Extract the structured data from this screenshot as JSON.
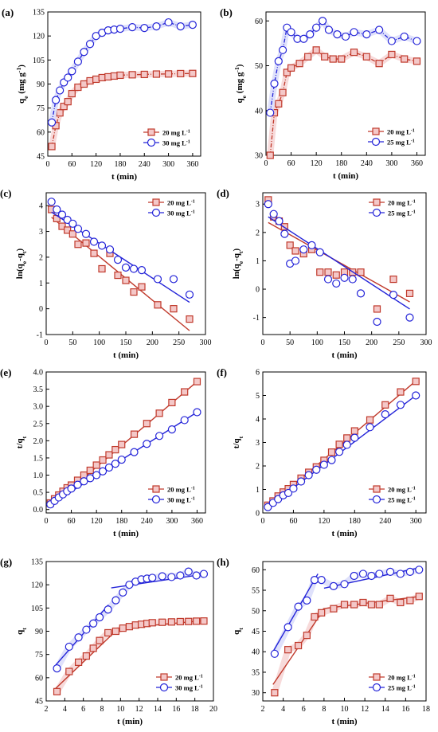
{
  "colors": {
    "red": "#c0392b",
    "blue": "#2323d8",
    "fill_red": "#f4c8c8",
    "fill_blue": "#ffffff",
    "band_red": "#f6d3d3",
    "band_blue": "#d9dcfa"
  },
  "chart_data": [
    {
      "id": "a",
      "panel_label": "(a)",
      "type": "line",
      "xlabel": "t (min)",
      "ylabel": "q_e (mg g^-1)",
      "xlim": [
        0,
        380
      ],
      "ylim": [
        45,
        135
      ],
      "xticks": [
        0,
        60,
        120,
        180,
        240,
        300,
        360
      ],
      "yticks": [
        45,
        60,
        75,
        90,
        105,
        120,
        135
      ],
      "legend_placement": "bottom-right",
      "band": true,
      "series": [
        {
          "name": "20 mg L^-1",
          "marker": "square",
          "color": "red",
          "x": [
            10,
            20,
            30,
            40,
            50,
            60,
            75,
            90,
            105,
            120,
            135,
            150,
            165,
            180,
            210,
            240,
            270,
            300,
            330,
            360
          ],
          "y": [
            51,
            64,
            72,
            76,
            79,
            84,
            88,
            90,
            92,
            93,
            94,
            94.5,
            95,
            95.5,
            95.8,
            96,
            96.2,
            96.3,
            96.5,
            96.6
          ]
        },
        {
          "name": "30 mg L^-1",
          "marker": "circle",
          "color": "blue",
          "x": [
            10,
            20,
            30,
            40,
            50,
            60,
            75,
            90,
            105,
            120,
            135,
            150,
            165,
            180,
            210,
            240,
            270,
            300,
            330,
            360
          ],
          "y": [
            66,
            80,
            86,
            91,
            94,
            98,
            104,
            110,
            115,
            120,
            122,
            123.5,
            124,
            124.5,
            125.5,
            125,
            126,
            128.5,
            126,
            127
          ]
        }
      ]
    },
    {
      "id": "b",
      "panel_label": "(b)",
      "type": "line",
      "xlabel": "t (min)",
      "ylabel": "q_e (mg g^-1)",
      "xlim": [
        0,
        380
      ],
      "ylim": [
        30,
        62
      ],
      "xticks": [
        0,
        60,
        120,
        180,
        240,
        300,
        360
      ],
      "yticks": [
        30,
        40,
        50,
        60
      ],
      "legend_placement": "bottom-right",
      "band": true,
      "series": [
        {
          "name": "20 mg L^-1",
          "marker": "square",
          "color": "red",
          "x": [
            10,
            20,
            30,
            40,
            50,
            60,
            80,
            100,
            120,
            140,
            160,
            180,
            210,
            240,
            270,
            300,
            330,
            360
          ],
          "y": [
            30,
            39.5,
            41.5,
            44,
            48.5,
            49.5,
            50.5,
            52,
            53.5,
            52,
            51.5,
            51.5,
            53,
            52,
            50.5,
            52.5,
            51.5,
            51
          ]
        },
        {
          "name": "25 mg L^-1",
          "marker": "circle",
          "color": "blue",
          "x": [
            10,
            20,
            30,
            40,
            50,
            60,
            75,
            90,
            105,
            120,
            135,
            150,
            170,
            190,
            210,
            240,
            270,
            300,
            330,
            360
          ],
          "y": [
            39.5,
            46,
            51,
            53.5,
            58.5,
            57.5,
            56,
            56,
            57,
            58.5,
            60,
            58,
            57,
            56.5,
            57.5,
            57,
            58,
            55.5,
            56.5,
            55.5
          ]
        }
      ]
    },
    {
      "id": "c",
      "panel_label": "(c)",
      "type": "scatter",
      "xlabel": "t (min)",
      "ylabel": "ln(q_e-q_t)",
      "xlim": [
        0,
        300
      ],
      "ylim": [
        -1,
        4.5
      ],
      "xticks": [
        0,
        50,
        100,
        150,
        200,
        250,
        300
      ],
      "yticks": [
        -1,
        0,
        1,
        2,
        3,
        4
      ],
      "legend_placement": "top-right",
      "band": false,
      "series": [
        {
          "name": "20 mg L^-1",
          "marker": "square",
          "color": "red",
          "x": [
            10,
            20,
            30,
            40,
            50,
            60,
            75,
            90,
            105,
            120,
            135,
            150,
            165,
            180,
            210,
            240,
            270
          ],
          "y": [
            3.85,
            3.5,
            3.2,
            3.05,
            2.9,
            2.5,
            2.55,
            2.15,
            1.55,
            2.15,
            1.3,
            1.1,
            0.65,
            0.85,
            0.15,
            0.0,
            -0.4
          ],
          "fit": [
            [
              10,
              3.55
            ],
            [
              270,
              -0.85
            ]
          ]
        },
        {
          "name": "30 mg L^-1",
          "marker": "circle",
          "color": "blue",
          "x": [
            10,
            20,
            30,
            40,
            50,
            60,
            75,
            90,
            105,
            120,
            135,
            150,
            165,
            180,
            210,
            240,
            270
          ],
          "y": [
            4.15,
            3.85,
            3.65,
            3.45,
            3.3,
            3.1,
            2.9,
            2.6,
            2.45,
            2.3,
            1.9,
            1.6,
            1.55,
            1.5,
            1.15,
            1.15,
            0.55
          ],
          "fit": [
            [
              10,
              3.75
            ],
            [
              270,
              0.25
            ]
          ]
        }
      ]
    },
    {
      "id": "d",
      "panel_label": "(d)",
      "type": "scatter",
      "xlabel": "t (min)",
      "ylabel": "ln(q_e-q_t)",
      "xlim": [
        0,
        300
      ],
      "ylim": [
        -1.6,
        3.4
      ],
      "xticks": [
        0,
        50,
        100,
        150,
        200,
        250,
        300
      ],
      "yticks": [
        -1,
        0,
        1,
        2,
        3
      ],
      "legend_placement": "top-right",
      "band": false,
      "series": [
        {
          "name": "20 mg L^-1",
          "marker": "square",
          "color": "red",
          "x": [
            10,
            20,
            30,
            40,
            50,
            60,
            75,
            90,
            105,
            120,
            135,
            150,
            165,
            180,
            210,
            240,
            270
          ],
          "y": [
            3.15,
            2.55,
            2.4,
            2.2,
            1.55,
            1.35,
            1.25,
            1.4,
            0.6,
            0.6,
            0.5,
            0.6,
            0.6,
            0.6,
            -0.7,
            0.35,
            -0.15
          ],
          "fit": [
            [
              10,
              2.35
            ],
            [
              270,
              -0.45
            ]
          ]
        },
        {
          "name": "25 mg L^-1",
          "marker": "circle",
          "color": "blue",
          "x": [
            10,
            20,
            30,
            40,
            50,
            60,
            75,
            90,
            105,
            120,
            135,
            150,
            165,
            180,
            210,
            240,
            270
          ],
          "y": [
            3.0,
            2.65,
            2.4,
            1.95,
            0.9,
            1.0,
            1.4,
            1.55,
            1.3,
            0.35,
            0.2,
            0.4,
            0.35,
            -0.15,
            -1.15,
            -0.2,
            -1.0
          ],
          "fit": [
            [
              10,
              2.55
            ],
            [
              270,
              -0.7
            ]
          ]
        }
      ]
    },
    {
      "id": "e",
      "panel_label": "(e)",
      "type": "scatter",
      "xlabel": "t (min)",
      "ylabel": "t/q_t",
      "xlim": [
        0,
        380
      ],
      "ylim": [
        -0.1,
        4.0
      ],
      "xticks": [
        0,
        60,
        120,
        180,
        240,
        300,
        360
      ],
      "yticks": [
        0.0,
        0.5,
        1.0,
        1.5,
        2.0,
        2.5,
        3.0,
        3.5,
        4.0
      ],
      "legend_placement": "bottom-right",
      "band": false,
      "series": [
        {
          "name": "20 mg L^-1",
          "marker": "square",
          "color": "red",
          "x": [
            10,
            20,
            30,
            40,
            50,
            60,
            75,
            90,
            105,
            120,
            135,
            150,
            165,
            180,
            210,
            240,
            270,
            300,
            330,
            360
          ],
          "y": [
            0.19,
            0.31,
            0.42,
            0.53,
            0.63,
            0.71,
            0.85,
            1.0,
            1.14,
            1.29,
            1.44,
            1.59,
            1.74,
            1.89,
            2.19,
            2.5,
            2.8,
            3.11,
            3.42,
            3.72
          ],
          "fit": [
            [
              10,
              0.1
            ],
            [
              360,
              3.72
            ]
          ]
        },
        {
          "name": "30 mg L^-1",
          "marker": "circle",
          "color": "blue",
          "x": [
            10,
            20,
            30,
            40,
            50,
            60,
            75,
            90,
            105,
            120,
            135,
            150,
            165,
            180,
            210,
            240,
            270,
            300,
            330,
            360
          ],
          "y": [
            0.15,
            0.25,
            0.35,
            0.44,
            0.53,
            0.61,
            0.72,
            0.82,
            0.91,
            1.0,
            1.11,
            1.22,
            1.33,
            1.45,
            1.67,
            1.91,
            2.14,
            2.33,
            2.6,
            2.83
          ],
          "fit": [
            [
              10,
              0.14
            ],
            [
              360,
              2.83
            ]
          ]
        }
      ]
    },
    {
      "id": "f",
      "panel_label": "(f)",
      "type": "scatter",
      "xlabel": "t (min)",
      "ylabel": "t/q_t",
      "xlim": [
        0,
        320
      ],
      "ylim": [
        0,
        6
      ],
      "xticks": [
        0,
        60,
        120,
        180,
        240,
        300
      ],
      "yticks": [
        0,
        1,
        2,
        3,
        4,
        5,
        6
      ],
      "legend_placement": "bottom-right",
      "band": false,
      "series": [
        {
          "name": "20 mg L^-1",
          "marker": "square",
          "color": "red",
          "x": [
            10,
            20,
            30,
            40,
            50,
            60,
            75,
            90,
            105,
            120,
            135,
            150,
            165,
            180,
            210,
            240,
            270,
            300
          ],
          "y": [
            0.33,
            0.51,
            0.72,
            0.89,
            1.03,
            1.21,
            1.48,
            1.73,
            1.96,
            2.24,
            2.59,
            2.92,
            3.19,
            3.49,
            3.96,
            4.6,
            5.15,
            5.6
          ],
          "fit": [
            [
              10,
              0.25
            ],
            [
              300,
              5.62
            ]
          ]
        },
        {
          "name": "25 mg L^-1",
          "marker": "circle",
          "color": "blue",
          "x": [
            10,
            20,
            30,
            40,
            50,
            60,
            75,
            90,
            105,
            120,
            135,
            150,
            165,
            180,
            210,
            240,
            270,
            300
          ],
          "y": [
            0.25,
            0.43,
            0.59,
            0.75,
            0.85,
            1.04,
            1.34,
            1.61,
            1.84,
            2.05,
            2.25,
            2.6,
            2.9,
            3.2,
            3.65,
            4.2,
            4.6,
            5.0
          ],
          "fit": [
            [
              10,
              0.25
            ],
            [
              300,
              5.0
            ]
          ]
        }
      ]
    },
    {
      "id": "g",
      "panel_label": "(g)",
      "type": "scatter",
      "xlabel": "t (min)",
      "ylabel": "q_t",
      "xlim": [
        2,
        20
      ],
      "ylim": [
        45,
        135
      ],
      "xticks": [
        2,
        4,
        6,
        8,
        10,
        12,
        14,
        16,
        18,
        20
      ],
      "yticks": [
        45,
        60,
        75,
        90,
        105,
        120,
        135
      ],
      "legend_placement": "bottom-right",
      "band": true,
      "series": [
        {
          "name": "20 mg L^-1",
          "marker": "square",
          "color": "red",
          "x": [
            3.16,
            4.47,
            5.48,
            6.32,
            7.07,
            7.75,
            8.66,
            9.49,
            10.25,
            10.95,
            11.62,
            12.25,
            12.85,
            13.42,
            14.49,
            15.49,
            16.43,
            17.32,
            18.17,
            18.97
          ],
          "y": [
            51,
            64,
            70,
            74,
            79,
            84,
            89,
            90,
            92,
            93,
            94,
            94.5,
            95,
            95.5,
            95.8,
            96,
            96.2,
            96.3,
            96.5,
            96.6
          ],
          "fit": [
            [
              3.0,
              53
            ],
            [
              9.2,
              88.5
            ],
            [
              9.2,
              91.5
            ],
            [
              19.2,
              97
            ]
          ]
        },
        {
          "name": "30 mg L^-1",
          "marker": "circle",
          "color": "blue",
          "x": [
            3.16,
            4.47,
            5.48,
            6.32,
            7.07,
            7.75,
            8.66,
            9.49,
            10.25,
            10.95,
            11.62,
            12.25,
            12.85,
            13.42,
            14.49,
            15.49,
            16.43,
            17.32,
            18.17,
            18.97
          ],
          "y": [
            66,
            80,
            86,
            91,
            95,
            99,
            104,
            110,
            115,
            120,
            122,
            123.5,
            124,
            124.5,
            125.5,
            125,
            126,
            128.5,
            126,
            127
          ],
          "fit": [
            [
              3.0,
              68
            ],
            [
              8.7,
              107
            ],
            [
              9.0,
              118
            ],
            [
              19.2,
              127
            ]
          ]
        }
      ]
    },
    {
      "id": "h",
      "panel_label": "(h)",
      "type": "scatter",
      "xlabel": "t (min)",
      "ylabel": "q_t",
      "xlim": [
        2,
        18
      ],
      "ylim": [
        28,
        62
      ],
      "xticks": [
        2,
        4,
        6,
        8,
        10,
        12,
        14,
        16,
        18
      ],
      "yticks": [
        30,
        35,
        40,
        45,
        50,
        55,
        60
      ],
      "legend_placement": "bottom-right",
      "band": true,
      "series": [
        {
          "name": "20 mg L^-1",
          "marker": "square",
          "color": "red",
          "x": [
            3.16,
            4.47,
            5.48,
            6.32,
            7.07,
            7.75,
            8.94,
            10.0,
            10.95,
            11.83,
            12.65,
            13.42,
            14.49,
            15.49,
            16.43,
            17.32
          ],
          "y": [
            30,
            40.5,
            41.5,
            44,
            48.5,
            49.5,
            50.5,
            51.5,
            51.5,
            52,
            51.5,
            51.5,
            53,
            52,
            52.5,
            53.5
          ],
          "fit": [
            [
              3.0,
              32
            ],
            [
              7.9,
              50
            ],
            [
              7.9,
              50.5
            ],
            [
              17.4,
              53.5
            ]
          ]
        },
        {
          "name": "25 mg L^-1",
          "marker": "circle",
          "color": "blue",
          "x": [
            3.16,
            4.47,
            5.48,
            6.32,
            7.07,
            7.75,
            8.94,
            10.0,
            10.95,
            11.83,
            12.65,
            13.42,
            14.49,
            15.49,
            16.43,
            17.32
          ],
          "y": [
            39.5,
            46,
            51,
            52.5,
            57.5,
            57.5,
            56,
            56.5,
            58.5,
            59,
            58.5,
            59,
            59.5,
            59,
            59.5,
            60
          ],
          "fit": [
            [
              3.0,
              40
            ],
            [
              7.4,
              59
            ],
            [
              8.0,
              55.5
            ],
            [
              17.4,
              60.5
            ]
          ]
        }
      ]
    }
  ]
}
